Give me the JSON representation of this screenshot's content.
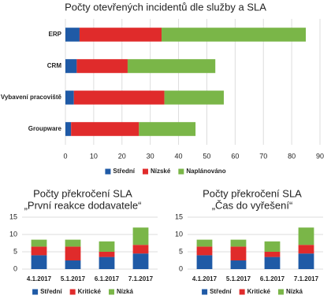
{
  "chart_data": [
    {
      "type": "bar",
      "orientation": "horizontal",
      "stacked": true,
      "title": "Počty otevřených incidentů dle služby a SLA",
      "categories": [
        "ERP",
        "CRM",
        "Vybavení pracoviště",
        "Groupware"
      ],
      "series": [
        {
          "name": "Střední",
          "color": "#1f5aa6",
          "values": [
            5,
            4,
            3,
            2
          ]
        },
        {
          "name": "Nízské",
          "color": "#e02b2b",
          "values": [
            29,
            18,
            32,
            24
          ]
        },
        {
          "name": "Naplánováno",
          "color": "#7ab648",
          "values": [
            51,
            31,
            21,
            20
          ]
        }
      ],
      "xlim": [
        0,
        90
      ],
      "xticks": [
        0,
        10,
        20,
        30,
        40,
        50,
        60,
        70,
        80,
        90
      ],
      "grid": true,
      "legend": "bottom"
    },
    {
      "type": "bar",
      "orientation": "vertical",
      "stacked": true,
      "title": "Počty překročení SLA",
      "subtitle": "„První reakce dodavatele“",
      "categories": [
        "4.1.2017",
        "5.1.2017",
        "6.1.2017",
        "7.1.2017"
      ],
      "series": [
        {
          "name": "Střední",
          "color": "#1f5aa6",
          "values": [
            4,
            2.5,
            3.5,
            4.5
          ]
        },
        {
          "name": "Kritické",
          "color": "#e02b2b",
          "values": [
            2.5,
            4,
            1.5,
            2.5
          ]
        },
        {
          "name": "Nízká",
          "color": "#7ab648",
          "values": [
            2,
            2,
            3,
            5
          ]
        }
      ],
      "ylim": [
        0,
        15
      ],
      "yticks": [
        0,
        5,
        10,
        15
      ],
      "grid": true,
      "legend": "bottom"
    },
    {
      "type": "bar",
      "orientation": "vertical",
      "stacked": true,
      "title": "Počty překročení SLA",
      "subtitle": "„Čas do vyřešení“",
      "categories": [
        "4.1.2017",
        "5.1.2017",
        "6.1.2017",
        "7.1.2017"
      ],
      "series": [
        {
          "name": "Střední",
          "color": "#1f5aa6",
          "values": [
            4,
            2.5,
            3.5,
            4.5
          ]
        },
        {
          "name": "Kritické",
          "color": "#e02b2b",
          "values": [
            2.5,
            4,
            1.5,
            2.5
          ]
        },
        {
          "name": "Nízká",
          "color": "#7ab648",
          "values": [
            2,
            2,
            3,
            5
          ]
        }
      ],
      "ylim": [
        0,
        15
      ],
      "yticks": [
        0,
        5,
        10,
        15
      ],
      "grid": true,
      "legend": "bottom"
    }
  ]
}
